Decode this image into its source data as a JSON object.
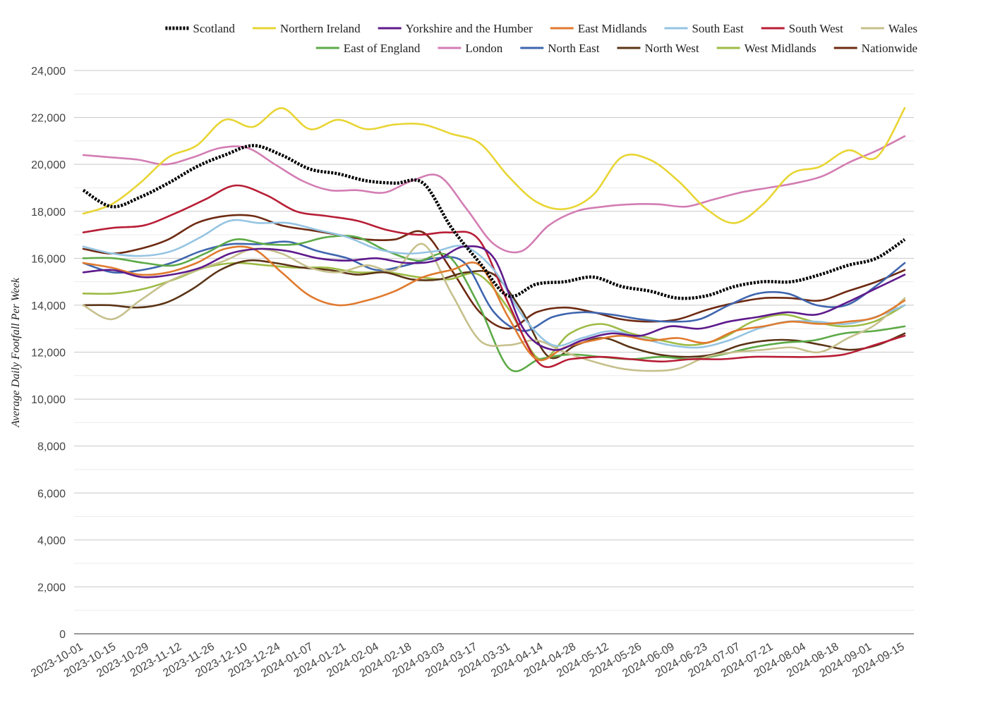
{
  "chart_data": {
    "type": "line",
    "title": "",
    "xlabel": "",
    "ylabel": "Average Daily Footfall Per Week",
    "ylim": [
      0,
      24000
    ],
    "y_ticks": [
      0,
      2000,
      4000,
      6000,
      8000,
      10000,
      12000,
      14000,
      16000,
      18000,
      20000,
      22000,
      24000
    ],
    "y_tick_labels": [
      "0",
      "2,000",
      "4,000",
      "6,000",
      "8,000",
      "10,000",
      "12,000",
      "14,000",
      "16,000",
      "18,000",
      "20,000",
      "22,000",
      "24,000"
    ],
    "x_tick_labels": [
      "2023-10-01",
      "2023-10-15",
      "2023-10-29",
      "2023-11-12",
      "2023-11-26",
      "2023-12-10",
      "2023-12-24",
      "2024-01-07",
      "2024-01-21",
      "2024-02-04",
      "2024-02-18",
      "2024-03-03",
      "2024-03-17",
      "2024-03-31",
      "2024-04-14",
      "2024-04-28",
      "2024-05-12",
      "2024-05-26",
      "2024-06-09",
      "2024-06-23",
      "2024-07-07",
      "2024-07-21",
      "2024-08-04",
      "2024-08-18",
      "2024-09-01",
      "2024-09-15"
    ],
    "grid": true,
    "legend": "top",
    "series": [
      {
        "name": "Scotland",
        "color": "#000000",
        "dashed": true,
        "values": [
          18900,
          18200,
          18600,
          19200,
          19900,
          20400,
          20800,
          20400,
          19800,
          19600,
          19300,
          19200,
          19200,
          17300,
          15800,
          14400,
          14900,
          15000,
          15200,
          14800,
          14600,
          14300,
          14400,
          14800,
          15000,
          15000,
          15300,
          15700,
          16000,
          16800
        ]
      },
      {
        "name": "Northern Ireland",
        "color": "#E8D534",
        "values": [
          17900,
          18300,
          19200,
          20300,
          20800,
          21900,
          21600,
          22400,
          21500,
          21900,
          21500,
          21700,
          21700,
          21300,
          20900,
          19500,
          18400,
          18100,
          18700,
          20300,
          20200,
          19300,
          18100,
          17500,
          18300,
          19600,
          19900,
          20600,
          20300,
          22400
        ]
      },
      {
        "name": "Yorkshire and the Humber",
        "color": "#5E1A8C",
        "values": [
          15400,
          15500,
          15200,
          15300,
          15600,
          16200,
          16400,
          16300,
          16000,
          15900,
          16000,
          15800,
          15900,
          16500,
          16000,
          13000,
          12100,
          12500,
          12800,
          12700,
          13100,
          13000,
          13300,
          13500,
          13700,
          13600,
          14100,
          14700,
          15300
        ]
      },
      {
        "name": "East Midlands",
        "color": "#E07A2E",
        "values": [
          15800,
          15600,
          15300,
          15400,
          15800,
          16400,
          16400,
          15400,
          14400,
          14000,
          14200,
          14600,
          15200,
          15500,
          15700,
          13500,
          11700,
          12200,
          12500,
          12700,
          12500,
          12600,
          12400,
          12900,
          13100,
          13300,
          13200,
          13300,
          13500,
          14200
        ]
      },
      {
        "name": "South East",
        "color": "#95C4E2",
        "values": [
          16500,
          16200,
          16100,
          16300,
          16900,
          17600,
          17500,
          17500,
          17200,
          16900,
          16400,
          16200,
          16300,
          16500,
          15500,
          13500,
          12300,
          12600,
          12900,
          12600,
          12300,
          12200,
          12500,
          13000,
          13300,
          13300,
          13200,
          13500,
          14000
        ]
      },
      {
        "name": "South West",
        "color": "#B81E36",
        "values": [
          17100,
          17300,
          17400,
          17900,
          18500,
          19100,
          18700,
          18000,
          17800,
          17600,
          17200,
          17000,
          17100,
          16800,
          14000,
          11500,
          11700,
          11800,
          11700,
          11600,
          11700,
          11700,
          11800,
          11800,
          11800,
          11900,
          12300,
          12700
        ]
      },
      {
        "name": "Wales",
        "color": "#C6C08C",
        "values": [
          14000,
          13400,
          14200,
          15000,
          15500,
          15900,
          16400,
          16200,
          15600,
          15400,
          15700,
          15500,
          16600,
          14500,
          12500,
          12300,
          12500,
          12000,
          11600,
          11300,
          11200,
          11300,
          11800,
          12000,
          12100,
          12200,
          12000,
          12600,
          13200,
          14300
        ]
      },
      {
        "name": "East of England",
        "color": "#5DAA47",
        "values": [
          16000,
          16000,
          15800,
          15700,
          16200,
          16800,
          16600,
          16600,
          16900,
          16900,
          16300,
          15900,
          16100,
          14000,
          11300,
          11700,
          11900,
          11800,
          11700,
          11800,
          11700,
          11900,
          12200,
          12400,
          12500,
          12800,
          12900,
          13100
        ]
      },
      {
        "name": "London",
        "color": "#D37DB3",
        "values": [
          20400,
          20300,
          20200,
          20000,
          20300,
          20700,
          20700,
          20000,
          19300,
          18900,
          18900,
          18800,
          19300,
          19500,
          18100,
          16600,
          16300,
          17400,
          18000,
          18200,
          18300,
          18300,
          18200,
          18500,
          18800,
          19000,
          19200,
          19500,
          20100,
          20600,
          21200
        ]
      },
      {
        "name": "North East",
        "color": "#3F65AE",
        "values": [
          15800,
          15400,
          15500,
          15800,
          16300,
          16600,
          16600,
          16700,
          16300,
          16000,
          15500,
          15700,
          16000,
          15800,
          13700,
          12900,
          13500,
          13700,
          13600,
          13400,
          13300,
          13400,
          14000,
          14500,
          14500,
          14000,
          14000,
          14800,
          15800
        ]
      },
      {
        "name": "North West",
        "color": "#5B3416",
        "values": [
          14000,
          14000,
          13900,
          14100,
          14700,
          15500,
          15900,
          15800,
          15600,
          15500,
          15300,
          15400,
          15100,
          15100,
          15400,
          15300,
          13800,
          11800,
          12300,
          12600,
          12200,
          11900,
          11800,
          11900,
          12300,
          12500,
          12500,
          12300,
          12100,
          12300,
          12800
        ]
      },
      {
        "name": "West Midlands",
        "color": "#9DBB45",
        "values": [
          14500,
          14500,
          14700,
          15100,
          15600,
          15800,
          15700,
          15600,
          15600,
          15400,
          15400,
          15200,
          15100,
          15300,
          13800,
          11700,
          12800,
          13200,
          12800,
          12500,
          12300,
          12600,
          13300,
          13600,
          13300,
          13100,
          13300,
          14000
        ]
      },
      {
        "name": "Nationwide",
        "color": "#6E2A12",
        "values": [
          16400,
          16200,
          16400,
          16800,
          17500,
          17800,
          17800,
          17400,
          17200,
          17000,
          16800,
          16800,
          17100,
          15500,
          13700,
          13000,
          13700,
          13900,
          13700,
          13400,
          13300,
          13400,
          13800,
          14100,
          14300,
          14300,
          14200,
          14600,
          15000,
          15500
        ]
      }
    ]
  }
}
